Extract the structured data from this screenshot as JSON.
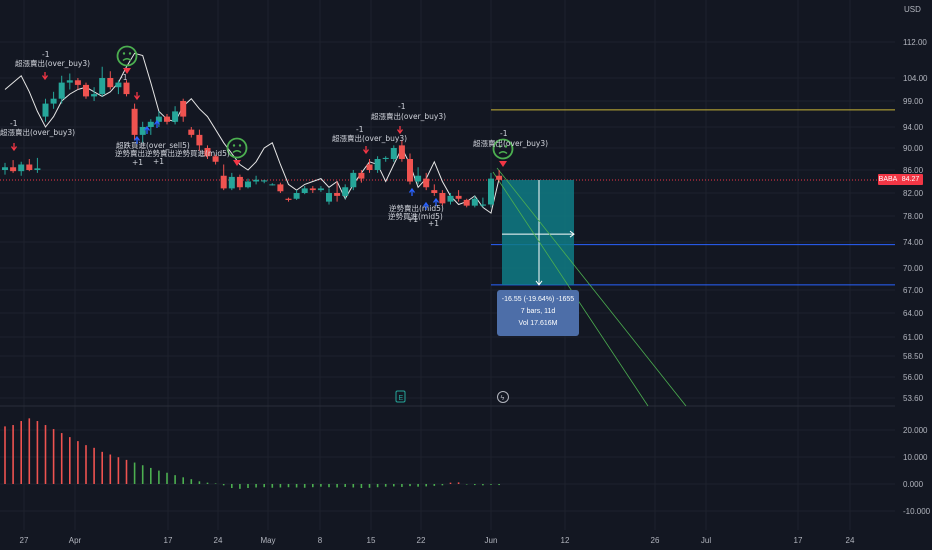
{
  "chart_data": {
    "type": "candlestick",
    "currency_label": "USD",
    "ticker": "BABA",
    "last_price": "84.27",
    "price_ticks": [
      "112.00",
      "104.00",
      "99.00",
      "94.00",
      "90.00",
      "86.00",
      "82.00",
      "78.00",
      "74.00",
      "70.00",
      "67.00",
      "64.00",
      "61.00",
      "58.50",
      "56.00",
      "53.60"
    ],
    "osc_ticks": [
      "20.000",
      "10.000",
      "0.000",
      "-10.000"
    ],
    "date_ticks": [
      "27",
      "Apr",
      "17",
      "24",
      "May",
      "8",
      "15",
      "22",
      "Jun",
      "12",
      "26",
      "Jul",
      "17",
      "24"
    ],
    "candles": [
      {
        "o": 86.0,
        "h": 87.3,
        "l": 85.2,
        "c": 86.5
      },
      {
        "o": 86.5,
        "h": 87.8,
        "l": 85.5,
        "c": 85.8
      },
      {
        "o": 85.8,
        "h": 87.5,
        "l": 85.0,
        "c": 87.0
      },
      {
        "o": 87.0,
        "h": 88.0,
        "l": 85.8,
        "c": 86.0
      },
      {
        "o": 86.0,
        "h": 88.2,
        "l": 85.5,
        "c": 86.3
      },
      {
        "o": 96.0,
        "h": 99.5,
        "l": 95.0,
        "c": 98.5
      },
      {
        "o": 98.5,
        "h": 101.0,
        "l": 97.5,
        "c": 99.5
      },
      {
        "o": 99.5,
        "h": 104.5,
        "l": 98.5,
        "c": 103.0
      },
      {
        "o": 103.0,
        "h": 105.0,
        "l": 101.5,
        "c": 103.5
      },
      {
        "o": 103.5,
        "h": 104.0,
        "l": 101.5,
        "c": 102.5
      },
      {
        "o": 102.5,
        "h": 103.0,
        "l": 99.5,
        "c": 100.0
      },
      {
        "o": 100.0,
        "h": 102.0,
        "l": 99.0,
        "c": 100.5
      },
      {
        "o": 100.5,
        "h": 106.5,
        "l": 100.0,
        "c": 104.0
      },
      {
        "o": 104.0,
        "h": 105.5,
        "l": 101.5,
        "c": 102.0
      },
      {
        "o": 102.0,
        "h": 103.5,
        "l": 100.5,
        "c": 103.0
      },
      {
        "o": 103.0,
        "h": 103.5,
        "l": 100.0,
        "c": 100.5
      },
      {
        "o": 97.5,
        "h": 98.5,
        "l": 91.5,
        "c": 92.5
      },
      {
        "o": 92.5,
        "h": 95.0,
        "l": 91.0,
        "c": 94.0
      },
      {
        "o": 94.0,
        "h": 95.5,
        "l": 92.5,
        "c": 95.0
      },
      {
        "o": 95.0,
        "h": 97.0,
        "l": 94.0,
        "c": 96.0
      },
      {
        "o": 96.0,
        "h": 96.5,
        "l": 94.5,
        "c": 95.0
      },
      {
        "o": 95.0,
        "h": 98.0,
        "l": 94.5,
        "c": 97.0
      },
      {
        "o": 99.0,
        "h": 99.5,
        "l": 95.0,
        "c": 96.0
      },
      {
        "o": 93.5,
        "h": 94.0,
        "l": 92.0,
        "c": 92.5
      },
      {
        "o": 92.5,
        "h": 93.5,
        "l": 89.5,
        "c": 90.5
      },
      {
        "o": 90.0,
        "h": 90.5,
        "l": 88.0,
        "c": 88.5
      },
      {
        "o": 88.5,
        "h": 88.8,
        "l": 87.0,
        "c": 87.5
      },
      {
        "o": 85.0,
        "h": 87.0,
        "l": 82.5,
        "c": 82.8
      },
      {
        "o": 82.8,
        "h": 85.5,
        "l": 82.5,
        "c": 84.8
      },
      {
        "o": 84.8,
        "h": 85.2,
        "l": 82.5,
        "c": 83.0
      },
      {
        "o": 83.0,
        "h": 84.5,
        "l": 82.8,
        "c": 84.0
      },
      {
        "o": 84.0,
        "h": 85.0,
        "l": 83.5,
        "c": 84.3
      },
      {
        "o": 84.0,
        "h": 84.3,
        "l": 83.7,
        "c": 84.2
      },
      {
        "o": 83.5,
        "h": 83.7,
        "l": 83.3,
        "c": 83.5
      },
      {
        "o": 83.5,
        "h": 83.8,
        "l": 82.0,
        "c": 82.3
      },
      {
        "o": 81.0,
        "h": 81.2,
        "l": 80.5,
        "c": 80.8
      },
      {
        "o": 81.0,
        "h": 82.5,
        "l": 80.8,
        "c": 82.0
      },
      {
        "o": 82.0,
        "h": 83.2,
        "l": 81.8,
        "c": 82.8
      },
      {
        "o": 82.8,
        "h": 83.2,
        "l": 82.0,
        "c": 82.5
      },
      {
        "o": 82.5,
        "h": 83.2,
        "l": 82.2,
        "c": 82.8
      },
      {
        "o": 80.5,
        "h": 82.8,
        "l": 80.0,
        "c": 82.0
      },
      {
        "o": 82.0,
        "h": 84.0,
        "l": 80.5,
        "c": 81.5
      },
      {
        "o": 81.5,
        "h": 83.5,
        "l": 81.0,
        "c": 83.0
      },
      {
        "o": 83.0,
        "h": 86.0,
        "l": 82.5,
        "c": 85.5
      },
      {
        "o": 85.5,
        "h": 86.0,
        "l": 83.8,
        "c": 84.5
      },
      {
        "o": 87.0,
        "h": 88.0,
        "l": 85.5,
        "c": 86.0
      },
      {
        "o": 86.0,
        "h": 88.5,
        "l": 85.5,
        "c": 88.0
      },
      {
        "o": 88.0,
        "h": 88.5,
        "l": 87.5,
        "c": 88.2
      },
      {
        "o": 88.0,
        "h": 90.5,
        "l": 87.5,
        "c": 90.0
      },
      {
        "o": 90.5,
        "h": 91.5,
        "l": 87.5,
        "c": 88.0
      },
      {
        "o": 88.0,
        "h": 89.0,
        "l": 83.5,
        "c": 84.0
      },
      {
        "o": 84.0,
        "h": 86.5,
        "l": 83.5,
        "c": 85.0
      },
      {
        "o": 84.5,
        "h": 85.5,
        "l": 82.5,
        "c": 83.0
      },
      {
        "o": 82.5,
        "h": 83.5,
        "l": 81.5,
        "c": 82.0
      },
      {
        "o": 82.0,
        "h": 82.5,
        "l": 79.8,
        "c": 80.2
      },
      {
        "o": 80.5,
        "h": 82.0,
        "l": 80.0,
        "c": 81.5
      },
      {
        "o": 81.5,
        "h": 82.5,
        "l": 80.5,
        "c": 81.0
      },
      {
        "o": 80.8,
        "h": 81.0,
        "l": 79.5,
        "c": 79.8
      },
      {
        "o": 79.8,
        "h": 81.5,
        "l": 79.5,
        "c": 81.0
      },
      {
        "o": 79.8,
        "h": 81.2,
        "l": 79.5,
        "c": 80.0
      },
      {
        "o": 80.0,
        "h": 85.5,
        "l": 79.5,
        "c": 84.5
      },
      {
        "o": 85.0,
        "h": 86.0,
        "l": 84.0,
        "c": 84.3
      }
    ],
    "envelope_line": [
      101.5,
      103.0,
      104.5,
      101.0,
      97.0,
      94.0,
      96.0,
      99.0,
      100.5,
      101.5,
      102.0,
      101.0,
      100.0,
      101.0,
      103.0,
      106.5,
      109.5,
      109.0,
      103.0,
      97.0,
      95.5,
      95.0,
      98.0,
      99.5,
      97.5,
      96.0,
      93.5,
      91.0,
      89.0,
      87.0,
      86.0,
      87.5,
      90.0,
      91.0,
      87.0,
      83.5,
      82.5,
      83.5,
      84.0,
      84.5,
      83.0,
      84.0,
      81.0,
      83.5,
      85.5,
      87.5,
      87.0,
      84.0,
      87.0,
      90.0,
      87.0,
      83.0,
      84.5,
      87.5,
      84.0,
      81.5,
      80.0,
      80.5,
      81.5,
      79.5,
      78.5,
      84.5
    ],
    "oscillator": [
      21.5,
      22.0,
      23.5,
      24.5,
      23.5,
      22.0,
      20.5,
      19.0,
      17.5,
      16.0,
      14.5,
      13.5,
      12.0,
      11.0,
      10.0,
      9.0,
      8.0,
      7.0,
      6.0,
      5.0,
      4.2,
      3.3,
      2.5,
      1.8,
      1.0,
      0.5,
      0.2,
      -0.5,
      -1.5,
      -1.8,
      -1.5,
      -1.3,
      -1.2,
      -1.4,
      -1.3,
      -1.2,
      -1.3,
      -1.4,
      -1.2,
      -1.0,
      -1.2,
      -1.3,
      -1.1,
      -1.3,
      -1.5,
      -1.4,
      -1.2,
      -1.0,
      -0.9,
      -1.1,
      -0.8,
      -1.0,
      -0.9,
      -0.7,
      -0.5,
      0.5,
      0.6,
      -0.2,
      -0.4,
      -0.5,
      -0.3,
      -0.4
    ],
    "horizontal_lines": [
      {
        "price": 97.3,
        "color": "#c9b437"
      },
      {
        "price": 73.6,
        "color": "#2962ff"
      },
      {
        "price": 67.7,
        "color": "#2962ff"
      },
      {
        "price": 84.27,
        "color": "#f23645",
        "style": "dotted"
      }
    ],
    "position_box": {
      "top": 84.27,
      "bottom": 67.7,
      "color": "#0f7b85"
    },
    "measure": {
      "line1": "-16.55 (-19.64%) -1655",
      "line2": "7 bars, 11d",
      "line3": "Vol 17.616M"
    },
    "annotations": [
      {
        "text": "-1",
        "kind": "label"
      },
      {
        "text": "超漲賣出(over_buy3)",
        "kind": "label"
      },
      {
        "text": "超跌買進(over_sell5)",
        "kind": "label"
      },
      {
        "text": "逆勢賣出",
        "kind": "label"
      },
      {
        "text": "逆勢買進(mid5)",
        "kind": "label"
      },
      {
        "text": "+1",
        "kind": "label"
      }
    ],
    "colors": {
      "up": "#26a69a",
      "down": "#ef5350",
      "osc_up": "#4caf50",
      "osc_down": "#ef5350",
      "envelope": "#e6e6e6",
      "background": "#131722",
      "grid": "#1e222d"
    }
  }
}
